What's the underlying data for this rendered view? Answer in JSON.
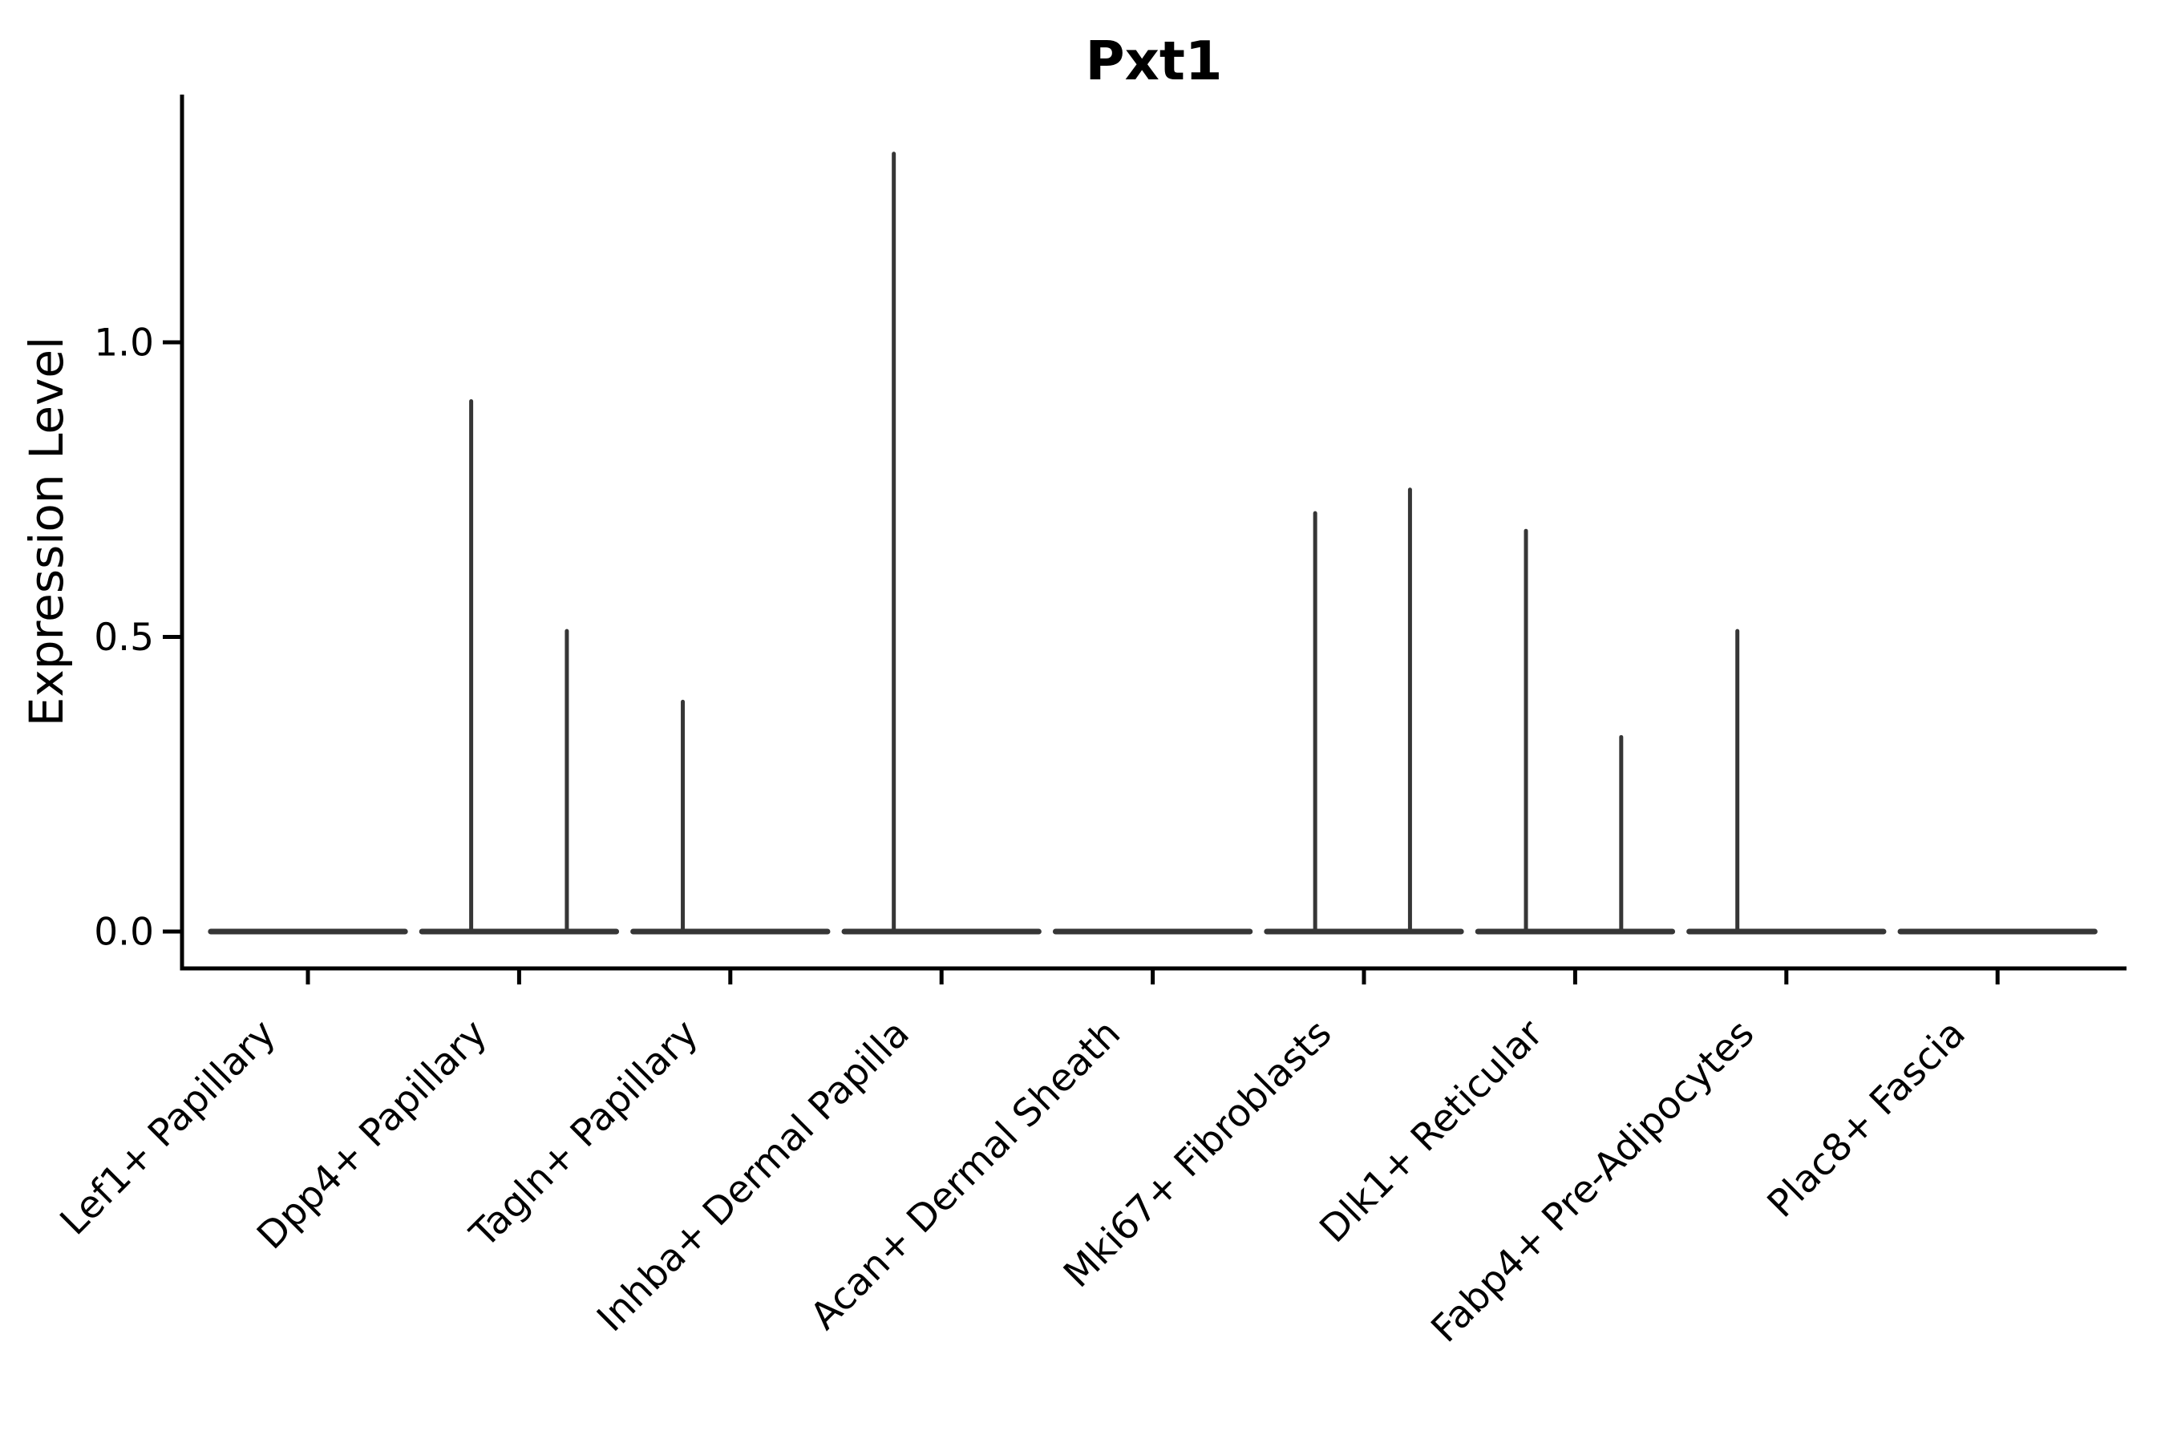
{
  "figure": {
    "title": "Pxt1",
    "background_color": "#ffffff",
    "axis_color": "#000000",
    "violin_color": "#363636"
  },
  "chart_data": {
    "type": "violin",
    "title": "Pxt1",
    "xlabel": "",
    "ylabel": "Expression Level",
    "ylim": [
      -0.06,
      1.42
    ],
    "grid": false,
    "legend": false,
    "x_tick_rotation": 45,
    "yticks": [
      {
        "value": 0.0,
        "label": "0.0"
      },
      {
        "value": 0.5,
        "label": "0.5"
      },
      {
        "value": 1.0,
        "label": "1.0"
      }
    ],
    "categories": [
      "Lef1+ Papillary",
      "Dpp4+ Papillary",
      "Tagln+ Papillary",
      "Inhba+ Dermal Papilla",
      "Acan+ Dermal Sheath",
      "Mki67+ Fibroblasts",
      "Dlk1+ Reticular",
      "Fabp4+ Pre-Adipocytes",
      "Plac8+ Fascia"
    ],
    "violins": [
      {
        "category": "Lef1+ Papillary",
        "base_value": 0.0,
        "base_halfwidth": 0.46,
        "spikes": []
      },
      {
        "category": "Dpp4+ Papillary",
        "base_value": 0.0,
        "base_halfwidth": 0.46,
        "spikes": [
          {
            "offset": -0.227,
            "value": 0.9
          },
          {
            "offset": 0.226,
            "value": 0.51
          }
        ]
      },
      {
        "category": "Tagln+ Papillary",
        "base_value": 0.0,
        "base_halfwidth": 0.46,
        "spikes": [
          {
            "offset": -0.225,
            "value": 0.39
          }
        ]
      },
      {
        "category": "Inhba+ Dermal Papilla",
        "base_value": 0.0,
        "base_halfwidth": 0.46,
        "spikes": [
          {
            "offset": -0.226,
            "value": 1.32
          }
        ]
      },
      {
        "category": "Acan+ Dermal Sheath",
        "base_value": 0.0,
        "base_halfwidth": 0.46,
        "spikes": []
      },
      {
        "category": "Mki67+ Fibroblasts",
        "base_value": 0.0,
        "base_halfwidth": 0.46,
        "spikes": [
          {
            "offset": -0.231,
            "value": 0.71
          },
          {
            "offset": 0.218,
            "value": 0.75
          }
        ]
      },
      {
        "category": "Dlk1+ Reticular",
        "base_value": 0.0,
        "base_halfwidth": 0.46,
        "spikes": [
          {
            "offset": -0.233,
            "value": 0.68
          },
          {
            "offset": 0.218,
            "value": 0.33
          }
        ]
      },
      {
        "category": "Fabp4+ Pre-Adipocytes",
        "base_value": 0.0,
        "base_halfwidth": 0.46,
        "spikes": [
          {
            "offset": -0.232,
            "value": 0.51
          }
        ]
      },
      {
        "category": "Plac8+ Fascia",
        "base_value": 0.0,
        "base_halfwidth": 0.46,
        "spikes": []
      }
    ]
  }
}
